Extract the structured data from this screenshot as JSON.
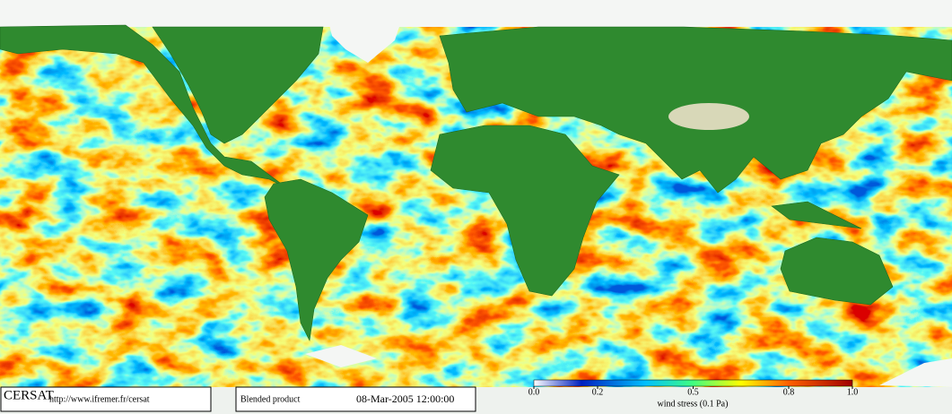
{
  "footer": {
    "logo": "CERSAT",
    "url": "http://www.ifremer.fr/cersat",
    "product": "Blended product",
    "date": "08-Mar-2005 12:00:00"
  },
  "colorbar": {
    "label": "wind stress (0.1 Pa)",
    "range": [
      0,
      1
    ],
    "ticks": [
      {
        "value": 0,
        "label": "0.0"
      },
      0.2,
      0.5,
      0.8,
      {
        "value": 1,
        "label": "1.0"
      }
    ]
  }
}
